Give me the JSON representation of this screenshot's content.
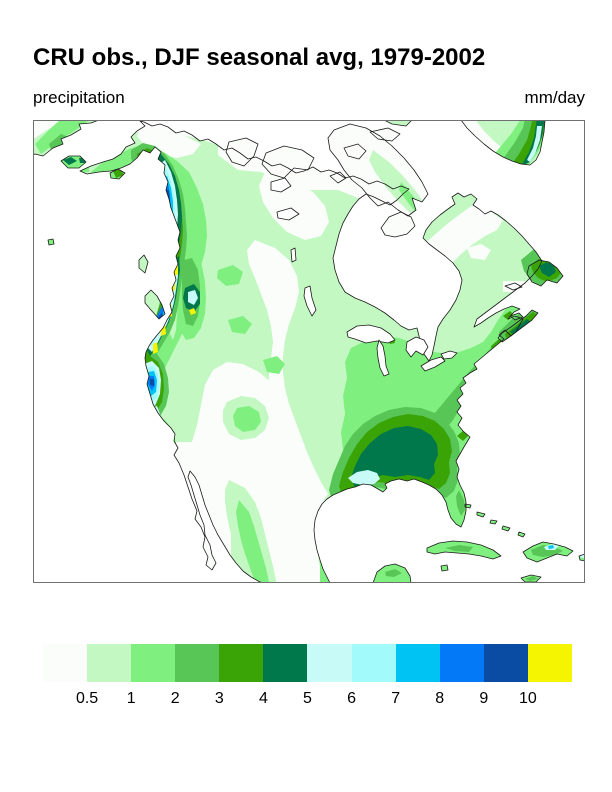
{
  "header": {
    "title": "CRU obs., DJF seasonal avg, 1979-2002",
    "variable": "precipitation",
    "units": "mm/day"
  },
  "colorbar": {
    "labels": [
      "0.5",
      "1",
      "2",
      "3",
      "4",
      "5",
      "6",
      "7",
      "8",
      "9",
      "10"
    ],
    "tick_values": [
      0.5,
      1,
      2,
      3,
      4,
      5,
      6,
      7,
      8,
      9,
      10
    ],
    "colors": [
      "#fbfdfb",
      "#c3f8c3",
      "#7ff07f",
      "#57c657",
      "#3aa305",
      "#00784b",
      "#c8fbf8",
      "#a2fafa",
      "#00c2f3",
      "#0379f8",
      "#0a4ba4",
      "#f5f502"
    ]
  },
  "chart_data": {
    "type": "filled-contour-map",
    "title": "CRU obs., DJF seasonal avg, 1979-2002",
    "variable": "precipitation",
    "units": "mm/day",
    "season": "DJF",
    "period": "1979-2002",
    "source_label": "CRU obs.",
    "region": "North America (land-only analysis; oceans blank)",
    "levels": [
      0.5,
      1,
      2,
      3,
      4,
      5,
      6,
      7,
      8,
      9,
      10
    ],
    "band_colors": [
      "#fbfdfb",
      "#c3f8c3",
      "#7ff07f",
      "#57c657",
      "#3aa305",
      "#00784b",
      "#c8fbf8",
      "#a2fafa",
      "#00c2f3",
      "#0379f8",
      "#0a4ba4",
      "#f5f502"
    ],
    "legend_position": "bottom",
    "features": [
      {
        "region": "Pacific coast band, SE Alaska to Oregon (coastal mountains)",
        "value_mm_day": "5-10 with local maxima >10 (yellow slivers along coast)"
      },
      {
        "region": "Northern California coast / Sierra",
        "value_mm_day": "6-9 core, small spot >10"
      },
      {
        "region": "Interior British Columbia secondary ridge",
        "value_mm_day": "2-6 with small 5-6 cyan spot"
      },
      {
        "region": "Southeastern United States (Gulf states core)",
        "value_mm_day": "4-5 core with 5-6 pale-cyan spot near Louisiana/Mississippi coast"
      },
      {
        "region": "Eastern seaboard and Appalachians to New England",
        "value_mm_day": "2-4"
      },
      {
        "region": "Nova Scotia and Newfoundland",
        "value_mm_day": "3-5"
      },
      {
        "region": "Quebec / Labrador",
        "value_mm_day": "0.5-3 increasing eastward"
      },
      {
        "region": "Southern Greenland tip",
        "value_mm_day": "1-5 with 5-6 sliver on southeast edge"
      },
      {
        "region": "Cuba, Hispaniola, Caribbean islands",
        "value_mm_day": "1-3; 5-6 cyan spot on Hispaniola"
      },
      {
        "region": "Great Plains, desert Southwest, Baja California, northern Mexico, Arctic islands, Hudson Bay surroundings",
        "value_mm_day": "<0.5 (white)"
      }
    ]
  }
}
